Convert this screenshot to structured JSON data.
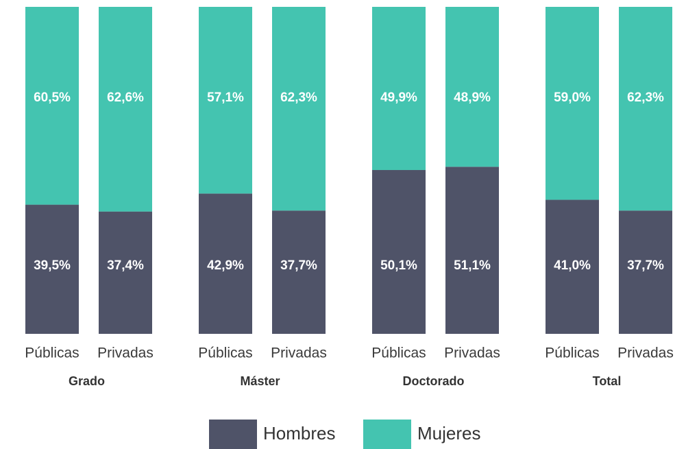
{
  "chart_data": {
    "type": "stacked_bar",
    "categories": [
      "Públicas",
      "Privadas",
      "Públicas",
      "Privadas",
      "Públicas",
      "Privadas",
      "Públicas",
      "Privadas"
    ],
    "groups": [
      "Grado",
      "Máster",
      "Doctorado",
      "Total"
    ],
    "series": [
      {
        "name": "Hombres",
        "color": "#4f5368",
        "values": [
          39.5,
          37.4,
          42.9,
          37.7,
          50.1,
          51.1,
          41.0,
          37.7
        ],
        "value_labels": [
          "39,5%",
          "37,4%",
          "42,9%",
          "37,7%",
          "50,1%",
          "51,1%",
          "41,0%",
          "37,7%"
        ]
      },
      {
        "name": "Mujeres",
        "color": "#44c4b0",
        "values": [
          60.5,
          62.6,
          57.1,
          62.3,
          49.9,
          48.9,
          59.0,
          62.3
        ],
        "value_labels": [
          "60,5%",
          "62,6%",
          "57,1%",
          "62,3%",
          "49,9%",
          "48,9%",
          "59,0%",
          "62,3%"
        ]
      }
    ]
  }
}
